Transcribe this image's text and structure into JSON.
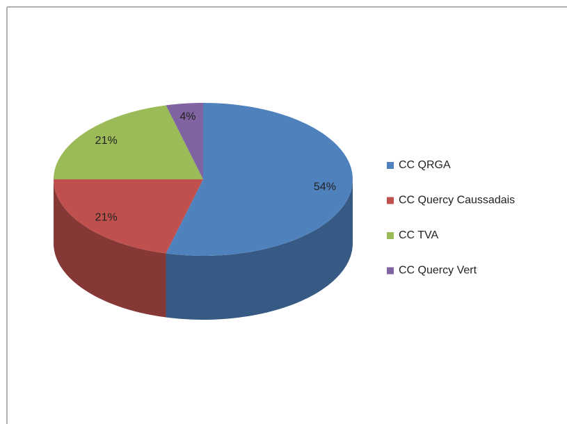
{
  "chart_data": {
    "type": "pie",
    "categories": [
      "CC QRGA",
      "CC Quercy Caussadais",
      "CC TVA",
      "CC Quercy Vert"
    ],
    "values": [
      54,
      21,
      21,
      4
    ],
    "value_labels": [
      "54%",
      "21%",
      "21%",
      "4%"
    ],
    "colors": [
      "#4f81bd",
      "#c0504d",
      "#9bbb59",
      "#8064a2"
    ],
    "legend": "right"
  }
}
